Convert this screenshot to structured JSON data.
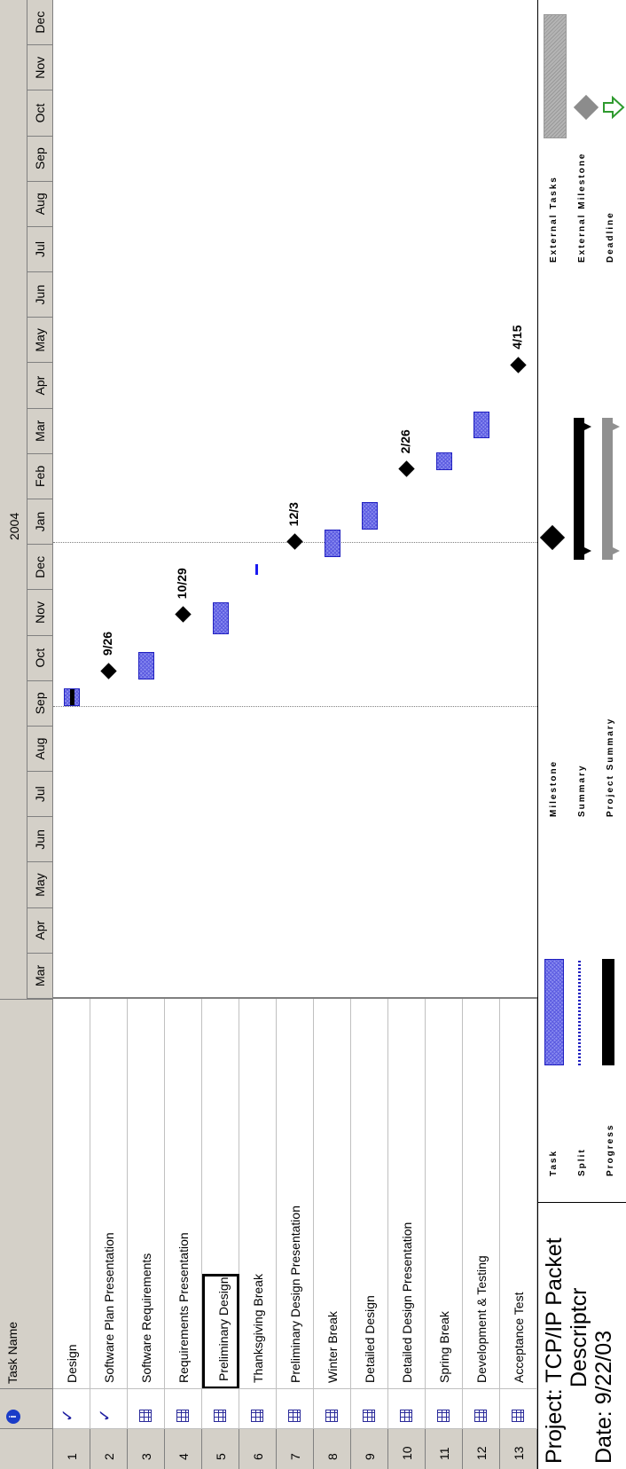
{
  "header": {
    "info_icon": "info-icon",
    "task_name_label": "Task Name",
    "year_label": "2004",
    "months": [
      "Mar",
      "Apr",
      "May",
      "Jun",
      "Jul",
      "Aug",
      "Sep",
      "Oct",
      "Nov",
      "Dec",
      "Jan",
      "Feb",
      "Mar",
      "Apr",
      "May",
      "Jun",
      "Jul",
      "Aug",
      "Sep",
      "Oct",
      "Nov",
      "Dec"
    ]
  },
  "tasks": [
    {
      "id": "1",
      "name": "Design",
      "indicator": "check"
    },
    {
      "id": "2",
      "name": "Software Plan Presentation",
      "indicator": "check"
    },
    {
      "id": "3",
      "name": "Software Requirements",
      "indicator": "grid"
    },
    {
      "id": "4",
      "name": "Requirements Presentation",
      "indicator": "grid"
    },
    {
      "id": "5",
      "name": "Preliminary Design",
      "indicator": "grid"
    },
    {
      "id": "6",
      "name": "Thanksgiving Break",
      "indicator": "grid"
    },
    {
      "id": "7",
      "name": "Preliminary Design Presentation",
      "indicator": "grid"
    },
    {
      "id": "8",
      "name": "Winter Break",
      "indicator": "grid"
    },
    {
      "id": "9",
      "name": "Detailed Design",
      "indicator": "grid"
    },
    {
      "id": "10",
      "name": "Detailed Design Presentation",
      "indicator": "grid"
    },
    {
      "id": "11",
      "name": "Spring Break",
      "indicator": "grid"
    },
    {
      "id": "12",
      "name": "Development & Testing",
      "indicator": "grid"
    },
    {
      "id": "13",
      "name": "Acceptance Test",
      "indicator": "grid"
    }
  ],
  "milestones": [
    "9/26",
    "10/29",
    "12/3",
    "2/26",
    "4/15"
  ],
  "footer": {
    "project_line": "Project: TCP/IP Packet",
    "project_line2": "Descriptcr",
    "date_line": "Date: 9/22/03"
  },
  "legend": {
    "task": "Task",
    "split": "Split",
    "progress": "Progress",
    "milestone": "Milestone",
    "summary": "Summary",
    "project_summary": "Project Summary",
    "external_tasks": "External Tasks",
    "external_milestone": "External Milestone",
    "deadline": "Deadline"
  },
  "colors": {
    "task_bar": "#8a8cf0",
    "header_bg": "#d4d0c8",
    "deadline_arrow": "#2e9a2e"
  }
}
